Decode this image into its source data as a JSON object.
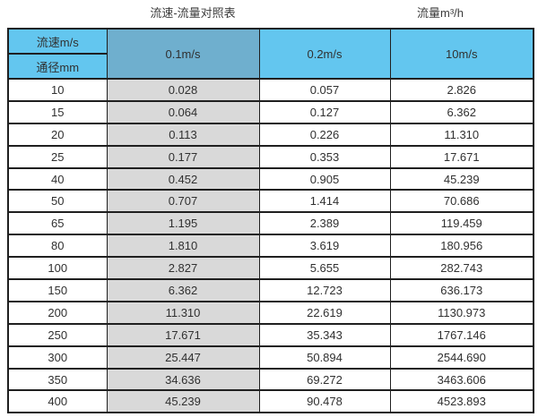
{
  "titles": {
    "main": "流速-流量对照表",
    "unit": "流量m³/h"
  },
  "table": {
    "corner_top": "流速m/s",
    "corner_bottom": "通径mm",
    "columns": [
      "0.1m/s",
      "0.2m/s",
      "10m/s"
    ],
    "rows": [
      {
        "diameter": "10",
        "v_0_1": "0.028",
        "v_0_2": "0.057",
        "v_10": "2.826"
      },
      {
        "diameter": "15",
        "v_0_1": "0.064",
        "v_0_2": "0.127",
        "v_10": "6.362"
      },
      {
        "diameter": "20",
        "v_0_1": "0.113",
        "v_0_2": "0.226",
        "v_10": "11.310"
      },
      {
        "diameter": "25",
        "v_0_1": "0.177",
        "v_0_2": "0.353",
        "v_10": "17.671"
      },
      {
        "diameter": "40",
        "v_0_1": "0.452",
        "v_0_2": "0.905",
        "v_10": "45.239"
      },
      {
        "diameter": "50",
        "v_0_1": "0.707",
        "v_0_2": "1.414",
        "v_10": "70.686"
      },
      {
        "diameter": "65",
        "v_0_1": "1.195",
        "v_0_2": "2.389",
        "v_10": "119.459"
      },
      {
        "diameter": "80",
        "v_0_1": "1.810",
        "v_0_2": "3.619",
        "v_10": "180.956"
      },
      {
        "diameter": "100",
        "v_0_1": "2.827",
        "v_0_2": "5.655",
        "v_10": "282.743"
      },
      {
        "diameter": "150",
        "v_0_1": "6.362",
        "v_0_2": "12.723",
        "v_10": "636.173"
      },
      {
        "diameter": "200",
        "v_0_1": "11.310",
        "v_0_2": "22.619",
        "v_10": "1130.973"
      },
      {
        "diameter": "250",
        "v_0_1": "17.671",
        "v_0_2": "35.343",
        "v_10": "1767.146"
      },
      {
        "diameter": "300",
        "v_0_1": "25.447",
        "v_0_2": "50.894",
        "v_10": "2544.690"
      },
      {
        "diameter": "350",
        "v_0_1": "34.636",
        "v_0_2": "69.272",
        "v_10": "3463.606"
      },
      {
        "diameter": "400",
        "v_0_1": "45.239",
        "v_0_2": "90.478",
        "v_10": "4523.893"
      }
    ]
  },
  "colors": {
    "header_light": "#63c6ef",
    "header_dark": "#6fafce",
    "col_gray": "#d9d9d9",
    "border_dark": "#1f1f1f",
    "text_main": "#303030",
    "page_bg": "#ffffff"
  },
  "chart_data": {
    "type": "table",
    "title": "流速-流量对照表",
    "unit_label": "流量m³/h",
    "columns": [
      "通径mm",
      "0.1m/s",
      "0.2m/s",
      "10m/s"
    ],
    "rows": [
      [
        10,
        0.028,
        0.057,
        2.826
      ],
      [
        15,
        0.064,
        0.127,
        6.362
      ],
      [
        20,
        0.113,
        0.226,
        11.31
      ],
      [
        25,
        0.177,
        0.353,
        17.671
      ],
      [
        40,
        0.452,
        0.905,
        45.239
      ],
      [
        50,
        0.707,
        1.414,
        70.686
      ],
      [
        65,
        1.195,
        2.389,
        119.459
      ],
      [
        80,
        1.81,
        3.619,
        180.956
      ],
      [
        100,
        2.827,
        5.655,
        282.743
      ],
      [
        150,
        6.362,
        12.723,
        636.173
      ],
      [
        200,
        11.31,
        22.619,
        1130.973
      ],
      [
        250,
        17.671,
        35.343,
        1767.146
      ],
      [
        300,
        25.447,
        50.894,
        2544.69
      ],
      [
        350,
        34.636,
        69.272,
        3463.606
      ],
      [
        400,
        45.239,
        90.478,
        4523.893
      ]
    ]
  }
}
